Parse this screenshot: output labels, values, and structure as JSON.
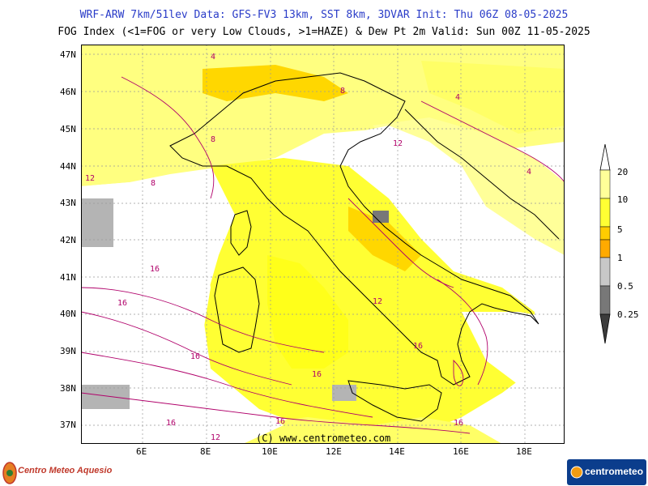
{
  "header": {
    "line1": "WRF-ARW 7km/51lev  Data: GFS-FV3 13km, SST 8km, 3DVAR  Init: Thu 06Z 08-05-2025",
    "line2": "FOG Index (<1=FOG or very Low Clouds, >1=HAZE) & Dew Pt 2m  Valid: Sun 00Z 11-05-2025"
  },
  "lat_ticks": [
    "47N",
    "46N",
    "45N",
    "44N",
    "43N",
    "42N",
    "41N",
    "40N",
    "39N",
    "38N",
    "37N"
  ],
  "lon_ticks": [
    "6E",
    "8E",
    "10E",
    "12E",
    "14E",
    "16E",
    "18E"
  ],
  "legend": {
    "labels": [
      "20",
      "10",
      "5",
      "1",
      "0.5",
      "0.25"
    ],
    "colors": {
      "20": "#ffff99",
      "10": "#ffff33",
      "5": "#ffcc00",
      "1": "#ffaa00",
      "0.5": "#c8c8c8",
      "0.25": "#787878",
      "low": "#3c3c3c"
    }
  },
  "map_colors": {
    "sea_white": "#ffffff",
    "haze_light": "#ffff80",
    "haze_mid": "#ffff1a",
    "haze_strong": "#ffd700",
    "fog_grey": "#b4b4b4",
    "contour": "#b0006a",
    "border": "#000000",
    "grid": "#999999"
  },
  "contour_labels": [
    "16",
    "16",
    "16",
    "16",
    "16",
    "16",
    "16",
    "12",
    "12",
    "12",
    "8",
    "8",
    "8",
    "4",
    "4",
    "4",
    "12",
    "16"
  ],
  "credit": "(C) www.centrometeo.com",
  "logo_left": "Centro Meteo Aquesio",
  "logo_right": "centrometeo"
}
